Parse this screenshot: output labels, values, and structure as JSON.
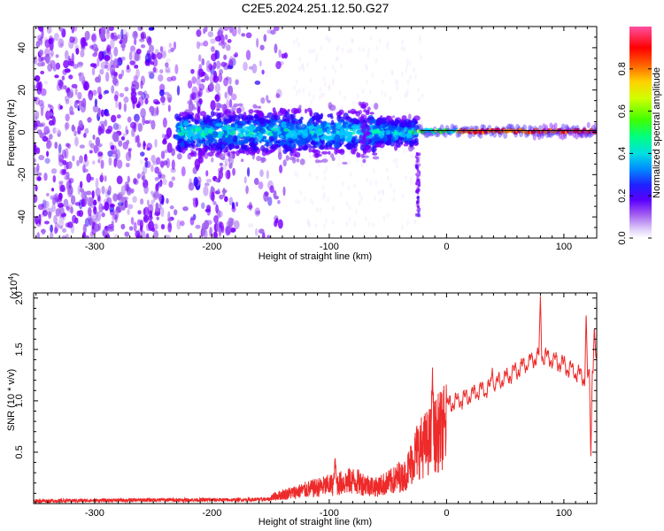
{
  "title": "C2E5.2024.251.12.50.G27",
  "colors": {
    "snr_line": "#ee2a2a",
    "baseline": "#000000",
    "colormap": [
      "#ffffff",
      "#e6d6fa",
      "#a060f0",
      "#7a00ff",
      "#2b00ff",
      "#0050ff",
      "#00c8ff",
      "#00ffa0",
      "#40ff00",
      "#ffff00",
      "#ff9000",
      "#ff0000",
      "#ff40a0"
    ]
  },
  "chart_data": [
    {
      "type": "heatmap",
      "title": "",
      "xlabel": "Height of straight line (km)",
      "ylabel": "Frequency (Hz)",
      "xlim": [
        -352,
        128
      ],
      "ylim": [
        -50,
        50
      ],
      "x_ticks": [
        -300,
        -200,
        -100,
        0,
        100
      ],
      "y_ticks": [
        -40,
        -20,
        0,
        20,
        40
      ],
      "colorbar": {
        "label": "Normalized spectral amplitude",
        "range": [
          0,
          1
        ],
        "ticks": [
          0.0,
          0.2,
          0.4,
          0.6,
          0.8
        ]
      },
      "grid": false,
      "features": {
        "carrier_line_hz": 0.8,
        "noise_region_km": [
          -352,
          -140
        ],
        "spread_band_km": [
          -230,
          -25
        ],
        "spread_band_hz": [
          -12,
          12
        ],
        "strong_carrier_km": [
          0,
          128
        ]
      }
    },
    {
      "type": "line",
      "title": "",
      "xlabel": "Height of straight line (km)",
      "ylabel": "SNR (10 * v/v)",
      "y_scale_label": "(x10",
      "y_scale_exponent": "4",
      "y_scale_suffix": ")",
      "xlim": [
        -352,
        128
      ],
      "ylim": [
        0,
        2.05
      ],
      "x_ticks": [
        -300,
        -200,
        -100,
        0,
        100
      ],
      "y_ticks": [
        0.5,
        1.0,
        1.5,
        2.0
      ],
      "grid": false,
      "envelope": {
        "x": [
          -352,
          -250,
          -180,
          -150,
          -120,
          -100,
          -80,
          -60,
          -45,
          -35,
          -25,
          -15,
          -8,
          0,
          20,
          40,
          60,
          80,
          100,
          120,
          128
        ],
        "y": [
          0.02,
          0.05,
          0.05,
          0.07,
          0.15,
          0.2,
          0.25,
          0.18,
          0.25,
          0.35,
          0.65,
          0.75,
          0.85,
          0.95,
          1.05,
          1.15,
          1.3,
          1.45,
          1.35,
          1.2,
          1.4
        ]
      },
      "peaks": [
        {
          "x": 80,
          "y": 2.02
        },
        {
          "x": 119,
          "y": 1.86
        },
        {
          "x": 126,
          "y": 1.72
        },
        {
          "x": 123,
          "y": 0.45
        },
        {
          "x": 39,
          "y": 1.33
        },
        {
          "x": -12,
          "y": 1.33
        },
        {
          "x": -95,
          "y": 0.45
        }
      ]
    }
  ]
}
